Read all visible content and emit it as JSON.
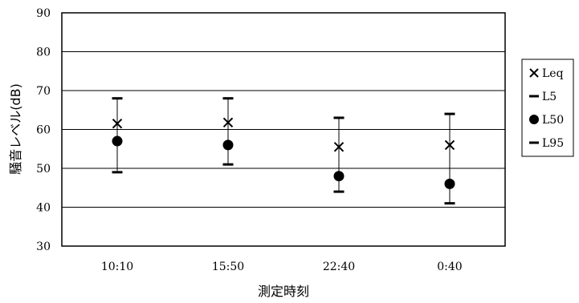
{
  "chart_data": {
    "type": "scatter",
    "xlabel": "測定時刻",
    "ylabel": "騒音レベル(dB)",
    "ylim": [
      30,
      90
    ],
    "yticks": [
      30,
      40,
      50,
      60,
      70,
      80,
      90
    ],
    "grid": true,
    "legend_position": "right",
    "categories": [
      "10:10",
      "15:50",
      "22:40",
      "0:40"
    ],
    "series": [
      {
        "name": "Leq",
        "marker": "x-icon",
        "values": [
          61.5,
          61.8,
          55.5,
          56
        ]
      },
      {
        "name": "L5",
        "marker": "dash-icon",
        "values": [
          68,
          68,
          63,
          64
        ]
      },
      {
        "name": "L50",
        "marker": "dot-icon",
        "values": [
          57,
          56,
          48,
          46
        ]
      },
      {
        "name": "L95",
        "marker": "dash-icon",
        "values": [
          49,
          51,
          44,
          41
        ]
      }
    ]
  }
}
